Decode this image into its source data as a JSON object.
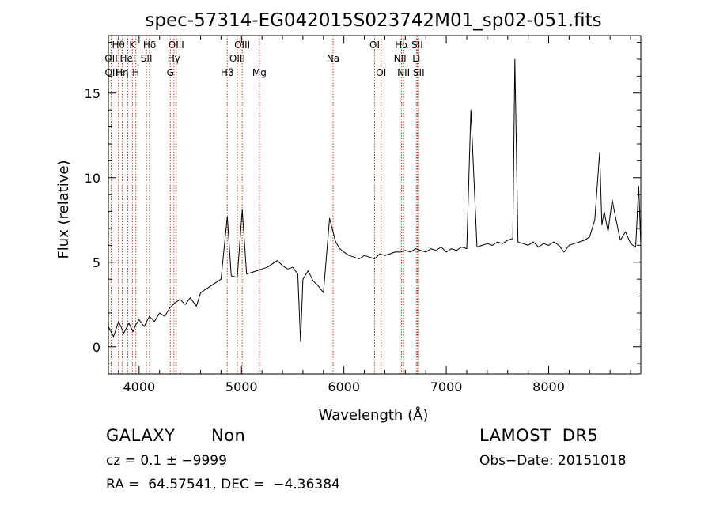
{
  "chart_data": {
    "type": "line",
    "title": "spec-57314-EG042015S023742M01_sp02-051.fits",
    "xlabel": "Wavelength (Å)",
    "ylabel": "Flux (relative)",
    "xlim": [
      3700,
      8900
    ],
    "ylim": [
      -1.6,
      18.4
    ],
    "xticks": [
      4000,
      5000,
      6000,
      7000,
      8000
    ],
    "yticks": [
      0,
      5,
      10,
      15
    ],
    "grid": false,
    "series": [
      {
        "color": "#000000",
        "x": [
          3700,
          3750,
          3800,
          3850,
          3900,
          3940,
          3968,
          4000,
          4050,
          4100,
          4150,
          4200,
          4250,
          4300,
          4350,
          4400,
          4450,
          4500,
          4560,
          4600,
          4650,
          4700,
          4750,
          4800,
          4861,
          4900,
          4959,
          5007,
          5050,
          5100,
          5150,
          5200,
          5250,
          5300,
          5350,
          5400,
          5450,
          5500,
          5550,
          5577,
          5600,
          5650,
          5700,
          5750,
          5800,
          5830,
          5860,
          5890,
          5920,
          5960,
          6000,
          6050,
          6100,
          6150,
          6200,
          6250,
          6300,
          6350,
          6400,
          6450,
          6500,
          6550,
          6600,
          6650,
          6700,
          6750,
          6800,
          6850,
          6900,
          6950,
          7000,
          7050,
          7100,
          7150,
          7200,
          7240,
          7300,
          7350,
          7400,
          7450,
          7500,
          7550,
          7600,
          7650,
          7670,
          7700,
          7750,
          7800,
          7850,
          7900,
          7950,
          8000,
          8050,
          8100,
          8150,
          8200,
          8250,
          8300,
          8350,
          8400,
          8450,
          8498,
          8520,
          8542,
          8580,
          8620,
          8662,
          8700,
          8750,
          8800,
          8850,
          8880,
          8900
        ],
        "y": [
          1.2,
          0.6,
          1.5,
          0.8,
          1.4,
          0.9,
          1.3,
          1.6,
          1.2,
          1.8,
          1.5,
          2.0,
          1.8,
          2.3,
          2.6,
          2.8,
          2.5,
          2.9,
          2.4,
          3.2,
          3.4,
          3.6,
          3.8,
          4.0,
          7.7,
          4.2,
          4.1,
          8.1,
          4.3,
          4.4,
          4.5,
          4.6,
          4.7,
          4.9,
          5.1,
          4.8,
          4.6,
          4.7,
          4.3,
          0.3,
          4.0,
          4.5,
          3.9,
          3.6,
          3.2,
          5.4,
          7.6,
          6.9,
          6.2,
          5.8,
          5.6,
          5.4,
          5.3,
          5.2,
          5.4,
          5.3,
          5.2,
          5.5,
          5.4,
          5.5,
          5.6,
          5.6,
          5.7,
          5.6,
          5.8,
          5.7,
          5.6,
          5.8,
          5.7,
          5.9,
          5.6,
          5.8,
          5.7,
          5.9,
          5.8,
          14.0,
          5.9,
          6.0,
          6.1,
          6.0,
          6.2,
          6.1,
          6.3,
          6.4,
          17.0,
          6.2,
          6.1,
          6.0,
          6.2,
          5.9,
          6.1,
          6.0,
          6.2,
          6.0,
          5.6,
          6.0,
          6.1,
          6.2,
          6.3,
          6.5,
          7.5,
          11.5,
          7.2,
          8.0,
          6.8,
          8.7,
          7.4,
          6.3,
          6.8,
          6.1,
          5.9,
          9.5,
          6.0
        ]
      }
    ],
    "lines": [
      {
        "label": "OII",
        "row": 2,
        "x": 3727
      },
      {
        "label": "OII",
        "row": 3,
        "x": 3729
      },
      {
        "label": "Hθ",
        "row": 1,
        "x": 3798
      },
      {
        "label": "Hη",
        "row": 3,
        "x": 3835
      },
      {
        "label": "HeI",
        "row": 2,
        "x": 3889
      },
      {
        "label": "K",
        "row": 1,
        "x": 3934
      },
      {
        "label": "H",
        "row": 3,
        "x": 3968
      },
      {
        "label": "Hδ",
        "row": 1,
        "x": 4102
      },
      {
        "label": "SII",
        "row": 2,
        "x": 4072
      },
      {
        "label": "OIII",
        "row": 1,
        "x": 4363
      },
      {
        "label": "Hγ",
        "row": 2,
        "x": 4340
      },
      {
        "label": "G",
        "row": 3,
        "x": 4305
      },
      {
        "label": "Hβ",
        "row": 3,
        "x": 4861
      },
      {
        "label": "OIII",
        "row": 1,
        "x": 5007
      },
      {
        "label": "OIII",
        "row": 2,
        "x": 4959
      },
      {
        "label": "Mg",
        "row": 3,
        "x": 5175
      },
      {
        "label": "Na",
        "row": 2,
        "x": 5894
      },
      {
        "label": "OI",
        "row": 1,
        "x": 6300
      },
      {
        "label": "OI",
        "row": 3,
        "x": 6364
      },
      {
        "label": "Hα",
        "row": 1,
        "x": 6563
      },
      {
        "label": "NII",
        "row": 2,
        "x": 6548
      },
      {
        "label": "NII",
        "row": 3,
        "x": 6583
      },
      {
        "label": "SII",
        "row": 1,
        "x": 6717
      },
      {
        "label": "Li",
        "row": 2,
        "x": 6708
      },
      {
        "label": "SII",
        "row": 3,
        "x": 6731
      }
    ]
  },
  "info": {
    "class_label": "GALAXY",
    "subclass_label": "Non",
    "survey_label": "LAMOST  DR5",
    "cz_label": "cz = 0.1 ± −9999",
    "obsdate_label": "Obs−Date: 20151018",
    "coords_label": "RA =  64.57541, DEC =  −4.36384"
  }
}
